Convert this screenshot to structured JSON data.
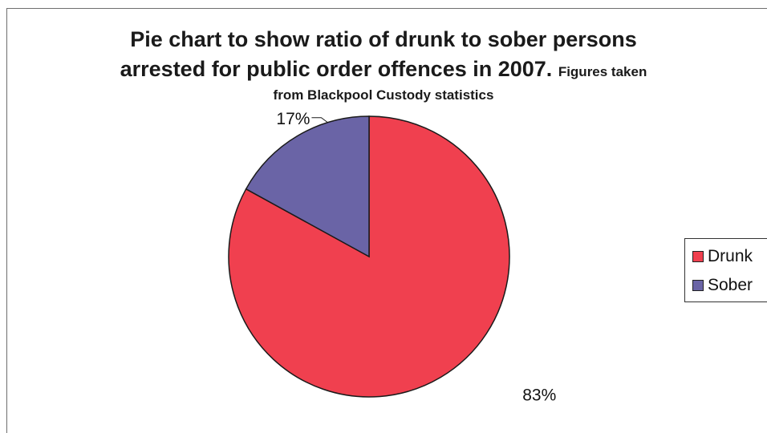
{
  "chart_data": {
    "type": "pie",
    "title_line1": "Pie chart to show ratio of drunk to sober persons",
    "title_line2_main": "arrested for public order offences in 2007.",
    "title_line2_small": "Figures taken",
    "title_line3": "from Blackpool Custody statistics",
    "categories": [
      "Drunk",
      "Sober"
    ],
    "values": [
      83,
      17
    ],
    "data_labels": [
      "83%",
      "17%"
    ],
    "colors": [
      "#f0404f",
      "#6a64a6"
    ],
    "legend_position": "right"
  }
}
